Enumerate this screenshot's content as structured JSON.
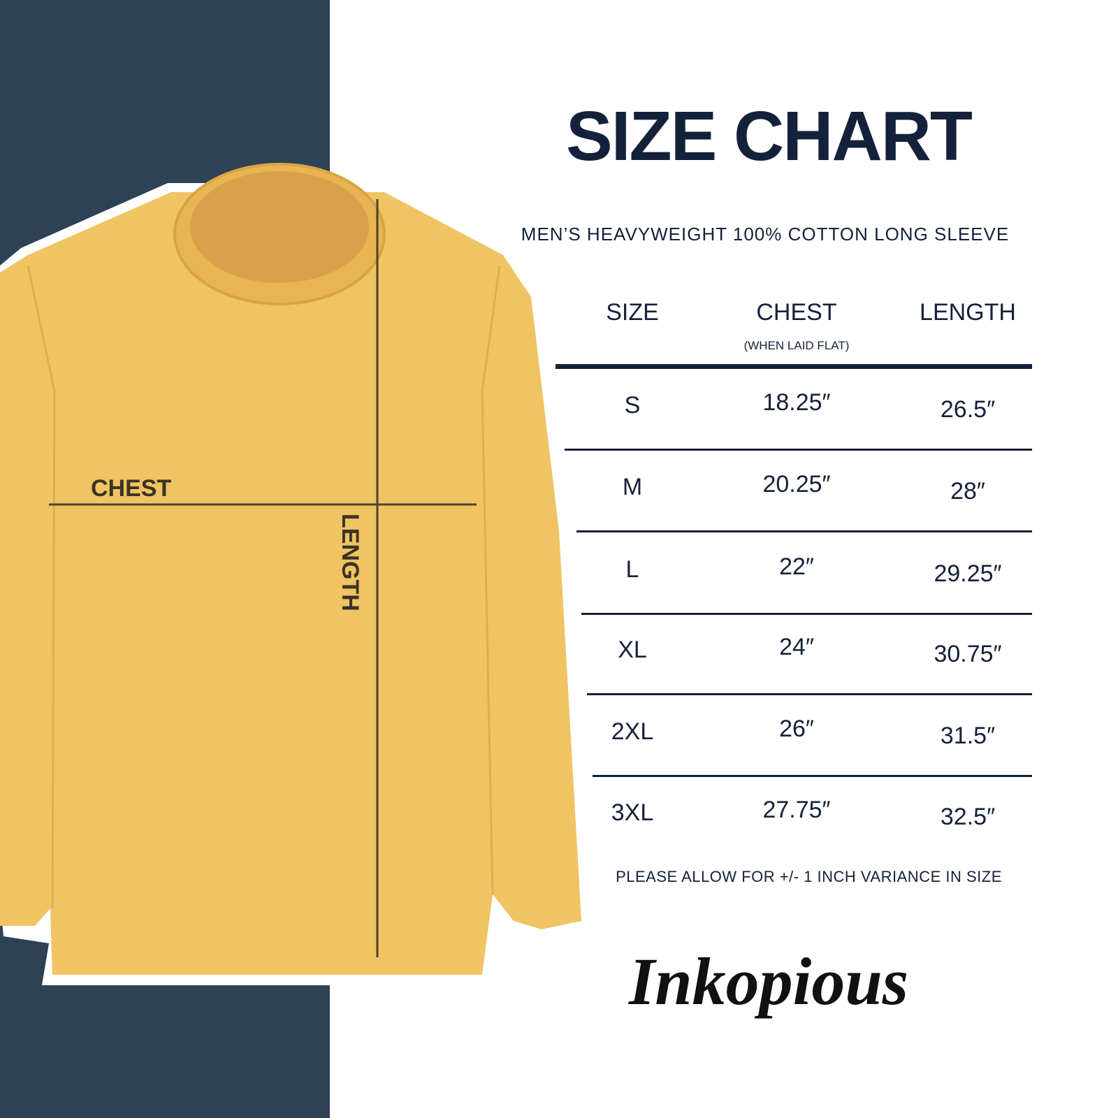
{
  "title": "SIZE CHART",
  "subtitle": "MEN’S HEAVYWEIGHT 100% COTTON LONG SLEEVE",
  "colors": {
    "panel": "#2e4255",
    "text": "#14213a",
    "shirt": "#f0c363"
  },
  "diagram": {
    "chest_label": "CHEST",
    "length_label": "LENGTH"
  },
  "table": {
    "headers": {
      "size": "SIZE",
      "chest": "CHEST",
      "chest_note": "(WHEN LAID FLAT)",
      "length": "LENGTH"
    },
    "rows": [
      {
        "size": "S",
        "chest": "18.25″",
        "length": "26.5″"
      },
      {
        "size": "M",
        "chest": "20.25″",
        "length": "28″"
      },
      {
        "size": "L",
        "chest": "22″",
        "length": "29.25″"
      },
      {
        "size": "XL",
        "chest": "24″",
        "length": "30.75″"
      },
      {
        "size": "2XL",
        "chest": "26″",
        "length": "31.5″"
      },
      {
        "size": "3XL",
        "chest": "27.75″",
        "length": "32.5″"
      }
    ]
  },
  "footer_note": "PLEASE ALLOW FOR +/- 1 INCH VARIANCE IN SIZE",
  "brand": "Inkopious"
}
